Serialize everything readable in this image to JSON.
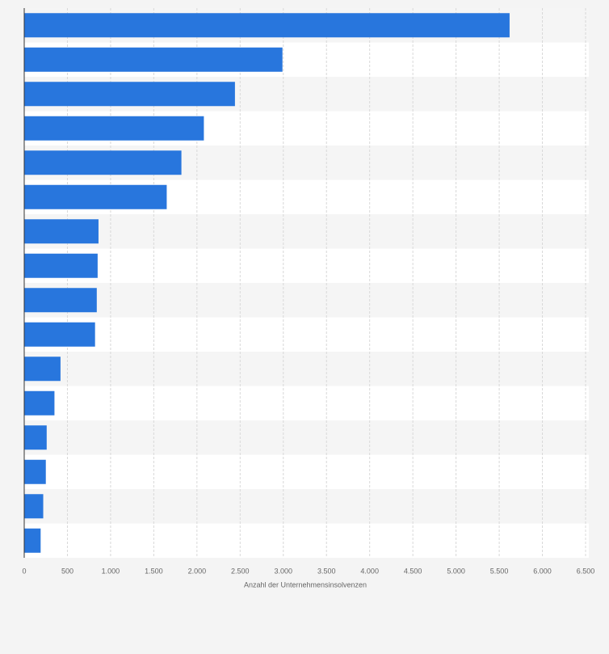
{
  "chart_data": {
    "type": "barh",
    "xlabel": "Anzahl der Unternehmensinsolvenzen",
    "categories": [
      null,
      null,
      null,
      null,
      null,
      null,
      null,
      null,
      null,
      null,
      null,
      null,
      null,
      null,
      null,
      null
    ],
    "values": [
      5620,
      2990,
      2440,
      2080,
      1820,
      1650,
      860,
      850,
      840,
      820,
      420,
      350,
      260,
      250,
      220,
      190
    ],
    "color": "#2876dd",
    "xlim": [
      0,
      6500
    ],
    "xticks": [
      0,
      500,
      {
        "value": 1000,
        "label": "1.000"
      },
      {
        "value": 1500,
        "label": "1.500"
      },
      {
        "value": 2000,
        "label": "2.000"
      },
      {
        "value": 2500,
        "label": "2.500"
      },
      {
        "value": 3000,
        "label": "3.000"
      },
      {
        "value": 3500,
        "label": "3.500"
      },
      {
        "value": 4000,
        "label": "4.000"
      },
      {
        "value": 4500,
        "label": "4.500"
      },
      {
        "value": 5000,
        "label": "5.000"
      },
      {
        "value": 5500,
        "label": "5.500"
      },
      {
        "value": 6000,
        "label": "6.000"
      },
      {
        "value": 6500,
        "label": "6.500"
      }
    ],
    "grid": true
  }
}
